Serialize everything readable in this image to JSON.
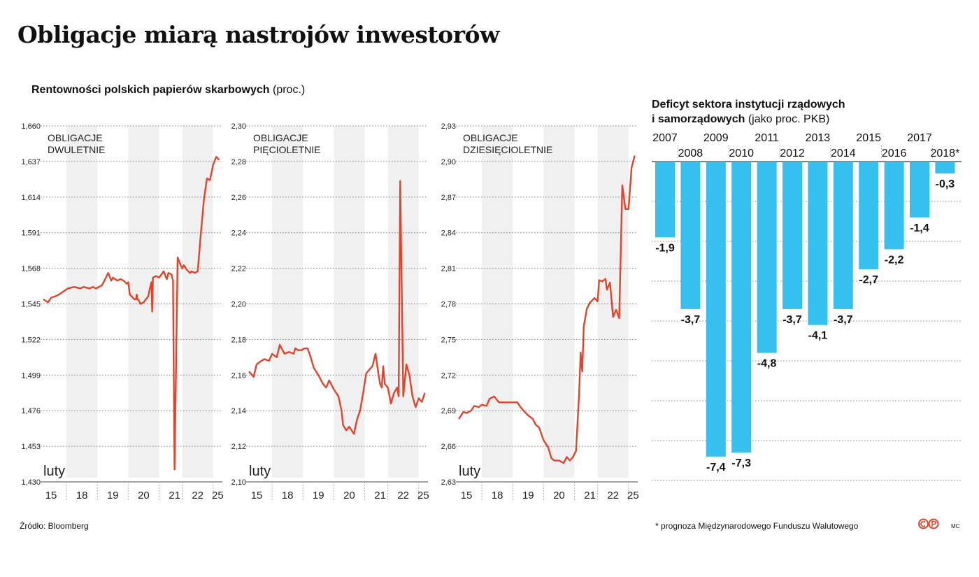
{
  "title": "Obligacje miarą nastrojów inwestorów",
  "left_heading": {
    "bold": "Rentowności polskich papierów skarbowych",
    "normal": "(proc.)"
  },
  "right_heading": {
    "line1": "Deficyt sektora instytucji rządowych",
    "line2_bold": "i samorządowych",
    "line2_normal": "(jako proc. PKB)"
  },
  "source": "Źródło:  Bloomberg",
  "footnote": "* prognoza Międzynarodowego Funduszu Walutowego",
  "initials": "MC",
  "colors": {
    "line": "#e0452c",
    "bar": "#35c0ef",
    "band": "#f0f0f0"
  },
  "chart_data": [
    {
      "type": "line",
      "title": "OBLIGACJE DWULETNIE",
      "title_lines": [
        "OBLIGACJE",
        "DWULETNIE"
      ],
      "month_label": "luty",
      "ylim": [
        1.43,
        1.66
      ],
      "yticks": [
        "1,660",
        "1,637",
        "1,614",
        "1,591",
        "1,568",
        "1,545",
        "1,522",
        "1,499",
        "1,476",
        "1,453",
        "1,430"
      ],
      "xticks": [
        "15",
        "18",
        "19",
        "20",
        "21",
        "22",
        "25"
      ],
      "series": [
        {
          "name": "rentowność",
          "x": [
            0,
            0.3,
            0.5,
            0.8,
            1,
            1.3,
            1.6,
            2,
            2.4,
            2.6,
            3,
            3.2,
            3.4,
            3.6,
            3.8,
            4,
            4.2,
            4.4,
            4.5,
            4.8,
            5,
            5.2,
            5.4,
            5.5,
            5.6,
            5.7,
            5.9,
            6,
            6.05,
            6.1,
            6.2,
            6.3,
            6.5,
            6.8,
            6.9,
            7.0,
            7.05,
            7.1,
            7.3,
            7.5,
            7.8,
            7.95,
            8.0,
            8.1,
            8.3,
            8.4,
            8.5,
            8.7,
            8.9,
            9.0,
            9.1,
            9.3,
            9.5,
            9.6,
            9.8,
            10.0,
            10.2,
            10.4,
            10.6,
            10.8,
            11.0,
            11.2,
            11.4
          ],
          "values": [
            1.548,
            1.546,
            1.549,
            1.55,
            1.551,
            1.553,
            1.555,
            1.556,
            1.555,
            1.556,
            1.555,
            1.556,
            1.555,
            1.556,
            1.557,
            1.561,
            1.565,
            1.56,
            1.562,
            1.56,
            1.561,
            1.56,
            1.558,
            1.559,
            1.551,
            1.55,
            1.548,
            1.548,
            1.551,
            1.548,
            1.547,
            1.545,
            1.546,
            1.55,
            1.555,
            1.559,
            1.54,
            1.562,
            1.563,
            1.562,
            1.566,
            1.562,
            1.561,
            1.565,
            1.564,
            1.56,
            1.438,
            1.575,
            1.57,
            1.568,
            1.57,
            1.567,
            1.565,
            1.566,
            1.565,
            1.566,
            1.59,
            1.612,
            1.626,
            1.625,
            1.635,
            1.64,
            1.638
          ]
        }
      ]
    },
    {
      "type": "line",
      "title": "OBLIGACJE PIĘCIOLETNIE",
      "title_lines": [
        "OBLIGACJE",
        "PIĘCIOLETNIE"
      ],
      "month_label": "luty",
      "ylim": [
        2.1,
        2.3
      ],
      "yticks": [
        "2,30",
        "2,28",
        "2,26",
        "2,24",
        "2,22",
        "2,20",
        "2,18",
        "2,16",
        "2,14",
        "2,12",
        "2,10"
      ],
      "xticks": [
        "15",
        "18",
        "19",
        "20",
        "21",
        "22",
        "25"
      ],
      "series": [
        {
          "name": "rentowność",
          "x": [
            0,
            0.3,
            0.5,
            0.8,
            1.0,
            1.3,
            1.5,
            1.8,
            2.0,
            2.3,
            2.6,
            2.9,
            3.0,
            3.2,
            3.4,
            3.6,
            3.8,
            4.0,
            4.2,
            4.5,
            4.8,
            5.0,
            5.2,
            5.5,
            5.8,
            6.0,
            6.1,
            6.3,
            6.5,
            6.8,
            7.0,
            7.2,
            7.4,
            7.6,
            7.8,
            8.0,
            8.2,
            8.4,
            8.5,
            8.6,
            8.7,
            8.8,
            9.0,
            9.2,
            9.4,
            9.6,
            9.7,
            9.8,
            10.0,
            10.2,
            10.4,
            10.6,
            10.8,
            11.0,
            11.2,
            11.4
          ],
          "values": [
            2.162,
            2.159,
            2.166,
            2.168,
            2.169,
            2.168,
            2.172,
            2.17,
            2.177,
            2.172,
            2.173,
            2.172,
            2.175,
            2.174,
            2.174,
            2.175,
            2.175,
            2.17,
            2.164,
            2.16,
            2.155,
            2.153,
            2.157,
            2.152,
            2.148,
            2.14,
            2.132,
            2.129,
            2.131,
            2.127,
            2.135,
            2.14,
            2.15,
            2.161,
            2.163,
            2.165,
            2.172,
            2.16,
            2.155,
            2.153,
            2.165,
            2.155,
            2.153,
            2.144,
            2.15,
            2.153,
            2.148,
            2.269,
            2.148,
            2.166,
            2.16,
            2.148,
            2.142,
            2.147,
            2.145,
            2.15
          ]
        }
      ]
    },
    {
      "type": "line",
      "title": "OBLIGACJE DZIESIĘCIOLETNIE",
      "title_lines": [
        "OBLIGACJE",
        "DZIESIĘCIOLETNIE"
      ],
      "month_label": "luty",
      "ylim": [
        2.63,
        2.93
      ],
      "yticks": [
        "2,93",
        "2,90",
        "2,87",
        "2,84",
        "2,81",
        "2,78",
        "2,75",
        "2,72",
        "2,69",
        "2,66",
        "2,63"
      ],
      "xticks": [
        "15",
        "18",
        "19",
        "20",
        "21",
        "22",
        "25"
      ],
      "series": [
        {
          "name": "rentowność",
          "x": [
            0,
            0.3,
            0.5,
            0.8,
            1.0,
            1.3,
            1.5,
            1.8,
            2.0,
            2.3,
            2.6,
            3.0,
            3.2,
            3.5,
            3.8,
            4.0,
            4.2,
            4.5,
            4.8,
            5.0,
            5.2,
            5.5,
            5.8,
            6.0,
            6.2,
            6.5,
            6.8,
            7.0,
            7.2,
            7.4,
            7.6,
            7.8,
            7.9,
            8.0,
            8.1,
            8.3,
            8.5,
            8.8,
            9.0,
            9.1,
            9.3,
            9.5,
            9.6,
            9.8,
            10.0,
            10.2,
            10.4,
            10.6,
            10.8,
            11.0,
            11.2,
            11.4
          ],
          "values": [
            2.683,
            2.689,
            2.688,
            2.69,
            2.694,
            2.693,
            2.695,
            2.694,
            2.7,
            2.702,
            2.697,
            2.697,
            2.697,
            2.697,
            2.697,
            2.693,
            2.69,
            2.686,
            2.683,
            2.678,
            2.676,
            2.665,
            2.659,
            2.65,
            2.648,
            2.648,
            2.646,
            2.651,
            2.648,
            2.651,
            2.656,
            2.704,
            2.739,
            2.723,
            2.761,
            2.776,
            2.781,
            2.785,
            2.782,
            2.8,
            2.799,
            2.801,
            2.792,
            2.798,
            2.769,
            2.775,
            2.768,
            2.88,
            2.86,
            2.86,
            2.895,
            2.905
          ]
        }
      ]
    },
    {
      "type": "bar",
      "title": "Deficyt sektora instytucji rządowych i samorządowych (jako proc. PKB)",
      "categories": [
        "2007",
        "2008",
        "2009",
        "2010",
        "2011",
        "2012",
        "2013",
        "2014",
        "2015",
        "2016",
        "2017",
        "2018*"
      ],
      "values": [
        -1.9,
        -3.7,
        -7.4,
        -7.3,
        -4.8,
        -3.7,
        -4.1,
        -3.7,
        -2.7,
        -2.2,
        -1.4,
        -0.3
      ],
      "value_labels": [
        "-1,9",
        "-3,7",
        "-7,4",
        "-7,3",
        "-4,8",
        "-3,7",
        "-4,1",
        "-3,7",
        "-2,7",
        "-2,2",
        "-1,4",
        "-0,3"
      ],
      "ylim": [
        -8,
        0
      ]
    }
  ]
}
